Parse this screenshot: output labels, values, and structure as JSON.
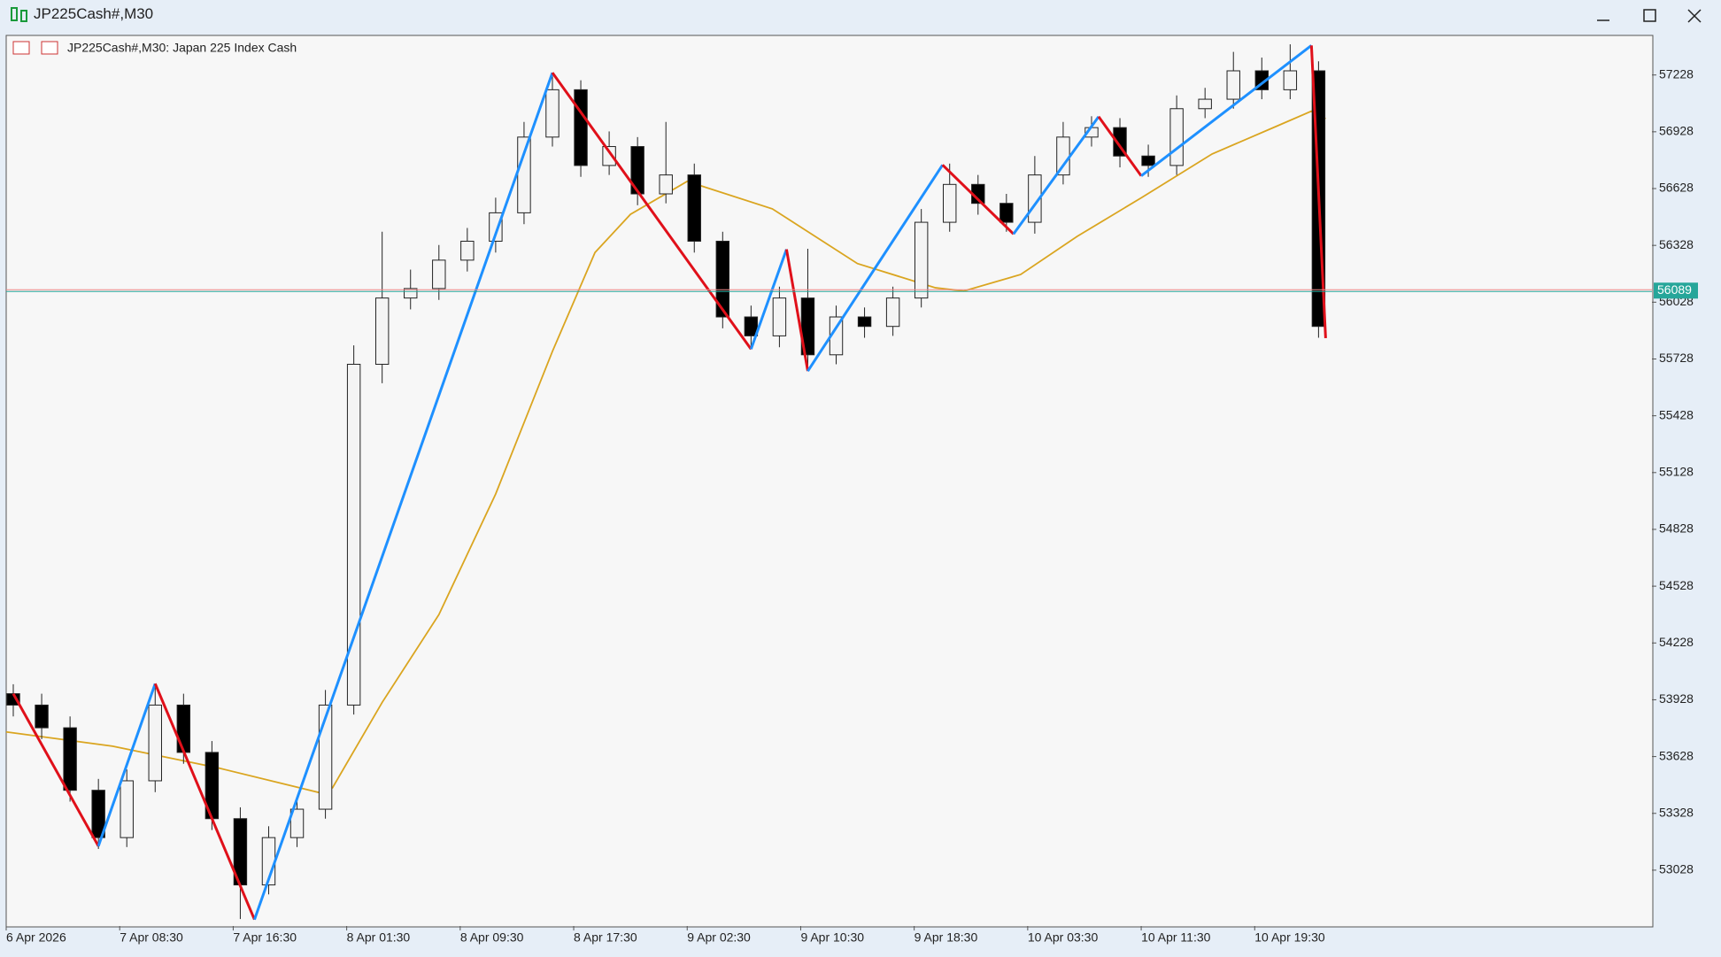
{
  "window": {
    "title": "JP225Cash#,M30"
  },
  "chart_data": {
    "type": "candlestick",
    "title": "JP225Cash#,M30:  Japan 225 Index Cash",
    "xlim": [
      0,
      232
    ],
    "xticks": [
      {
        "value": 0,
        "label": "6 Apr 2026"
      },
      {
        "value": 16,
        "label": "7 Apr 08:30"
      },
      {
        "value": 32,
        "label": "7 Apr 16:30"
      },
      {
        "value": 48,
        "label": "8 Apr 01:30"
      },
      {
        "value": 64,
        "label": "8 Apr 09:30"
      },
      {
        "value": 80,
        "label": "8 Apr 17:30"
      },
      {
        "value": 96,
        "label": "9 Apr 02:30"
      },
      {
        "value": 112,
        "label": "9 Apr 10:30"
      },
      {
        "value": 128,
        "label": "9 Apr 18:30"
      },
      {
        "value": 144,
        "label": "10 Apr 03:30"
      },
      {
        "value": 160,
        "label": "10 Apr 11:30"
      },
      {
        "value": 176,
        "label": "10 Apr 19:30"
      }
    ],
    "ylim": [
      52733,
      57437
    ],
    "yticks": [
      57228,
      56928,
      56628,
      56328,
      56028,
      55728,
      55428,
      55128,
      54828,
      54528,
      54228,
      53928,
      53628,
      53328,
      53028
    ],
    "up_color": "#f4f4f4",
    "down_color": "#000000",
    "candles": {
      "x": [
        1,
        5,
        9,
        13,
        17,
        21,
        25,
        29,
        33,
        37,
        41,
        45,
        49,
        53,
        57,
        61,
        65,
        69,
        73,
        77,
        81,
        85,
        89,
        93,
        97,
        101,
        105,
        109,
        113,
        117,
        121,
        125,
        129,
        133,
        137,
        141,
        145,
        149,
        153,
        157,
        161,
        165,
        169,
        173,
        177,
        181,
        185
      ],
      "open": [
        53960,
        53900,
        53780,
        53450,
        53200,
        53500,
        53900,
        53650,
        53300,
        52950,
        53200,
        53350,
        53900,
        55700,
        56050,
        56100,
        56250,
        56350,
        56500,
        56900,
        57150,
        56750,
        56850,
        56600,
        56700,
        56350,
        55950,
        55850,
        56050,
        55750,
        55950,
        55900,
        56050,
        56450,
        56650,
        56550,
        56450,
        56700,
        56900,
        56950,
        56800,
        56750,
        57050,
        57100,
        57250,
        57150,
        57250
      ],
      "high": [
        54010,
        53960,
        53840,
        53510,
        53560,
        54000,
        53960,
        53710,
        53360,
        53260,
        53420,
        53980,
        55800,
        56400,
        56200,
        56330,
        56420,
        56580,
        56980,
        57240,
        57200,
        56930,
        56900,
        56980,
        56760,
        56400,
        56010,
        56110,
        56310,
        56010,
        56000,
        56110,
        56520,
        56760,
        56700,
        56600,
        56800,
        56980,
        57010,
        57000,
        56860,
        57120,
        57160,
        57350,
        57320,
        57390,
        57300
      ],
      "low": [
        53840,
        53720,
        53390,
        53140,
        53150,
        53440,
        53590,
        53240,
        52770,
        52900,
        53150,
        53300,
        53850,
        55600,
        55990,
        56040,
        56190,
        56290,
        56440,
        56850,
        56690,
        56700,
        56540,
        56550,
        56290,
        55890,
        55780,
        55790,
        55670,
        55700,
        55840,
        55850,
        56000,
        56400,
        56490,
        56400,
        56390,
        56650,
        56850,
        56740,
        56690,
        56700,
        57000,
        57050,
        57100,
        57100,
        55840
      ],
      "close": [
        53900,
        53780,
        53450,
        53200,
        53500,
        53900,
        53650,
        53300,
        52950,
        53200,
        53350,
        53900,
        55700,
        56050,
        56100,
        56250,
        56350,
        56500,
        56900,
        57150,
        56750,
        56850,
        56600,
        56700,
        56350,
        55950,
        55850,
        56050,
        55750,
        55950,
        55900,
        56050,
        56450,
        56650,
        56550,
        56450,
        56700,
        56900,
        56950,
        56800,
        56750,
        57050,
        57100,
        57250,
        57150,
        57250,
        55900
      ]
    },
    "zigzag": {
      "up_color": "#1e90ff",
      "down_color": "#e0101a",
      "x": [
        1,
        13,
        21,
        35,
        77,
        105,
        110,
        113,
        132,
        142,
        154,
        160,
        184,
        186
      ],
      "values": [
        53960,
        53155,
        54013,
        52767,
        57240,
        55780,
        56307,
        55664,
        56753,
        56388,
        57008,
        56695,
        57384,
        55838
      ]
    },
    "ma": {
      "color": "#daa520",
      "x": [
        0,
        15,
        30,
        44,
        46,
        53,
        61,
        69,
        77,
        83,
        88,
        96,
        108,
        120,
        131,
        135,
        143,
        151,
        160,
        170,
        179,
        184,
        186
      ],
      "values": [
        53758,
        53683,
        53567,
        53439,
        53463,
        53914,
        54378,
        55015,
        55768,
        56290,
        56492,
        56666,
        56521,
        56232,
        56104,
        56087,
        56174,
        56376,
        56579,
        56811,
        56956,
        57037,
        56997
      ]
    },
    "current_price": {
      "value": 56089,
      "color": "#26a69a"
    }
  }
}
